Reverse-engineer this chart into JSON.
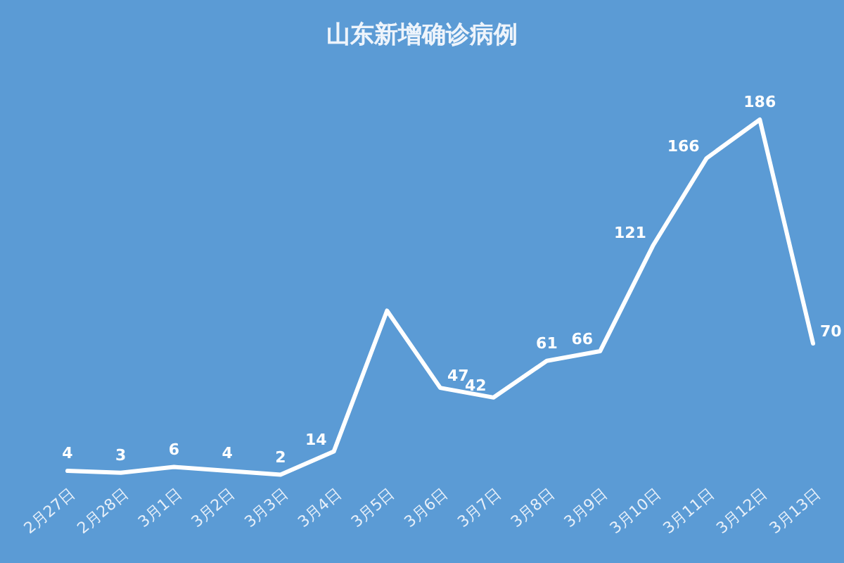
{
  "chart_data": {
    "type": "line",
    "title": "山东新增确诊病例",
    "categories": [
      "2月27日",
      "2月28日",
      "3月1日",
      "3月2日",
      "3月3日",
      "3月4日",
      "3月5日",
      "3月6日",
      "3月7日",
      "3月8日",
      "3月9日",
      "3月10日",
      "3月11日",
      "3月12日",
      "3月13日"
    ],
    "values": [
      4,
      3,
      6,
      4,
      2,
      14,
      87,
      47,
      42,
      61,
      66,
      121,
      166,
      186,
      70
    ],
    "value_labels": [
      "4",
      "3",
      "6",
      "4",
      "2",
      "14",
      null,
      "47",
      "42",
      "61",
      "66",
      "121",
      "166",
      "186",
      "70"
    ],
    "color": "#ffffff",
    "tick_labels": "x",
    "marker": "none"
  }
}
